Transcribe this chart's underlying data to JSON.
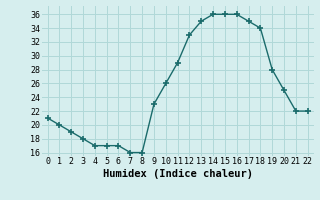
{
  "x": [
    0,
    1,
    2,
    3,
    4,
    5,
    6,
    7,
    8,
    9,
    10,
    11,
    12,
    13,
    14,
    15,
    16,
    17,
    18,
    19,
    20,
    21,
    22
  ],
  "y": [
    21,
    20,
    19,
    18,
    17,
    17,
    17,
    16,
    16,
    23,
    26,
    29,
    33,
    35,
    36,
    36,
    36,
    35,
    34,
    28,
    25,
    22,
    22
  ],
  "line_color": "#1a6b6b",
  "marker": "+",
  "marker_size": 4,
  "marker_lw": 1.2,
  "line_width": 1.0,
  "bg_color": "#d6eeee",
  "grid_color": "#b0d8d8",
  "xlabel": "Humidex (Indice chaleur)",
  "xlabel_fontsize": 7.5,
  "tick_fontsize": 6,
  "xticks": [
    0,
    1,
    2,
    3,
    4,
    5,
    6,
    7,
    8,
    9,
    10,
    11,
    12,
    13,
    14,
    15,
    16,
    17,
    18,
    19,
    20,
    21,
    22
  ],
  "yticks": [
    16,
    18,
    20,
    22,
    24,
    26,
    28,
    30,
    32,
    34,
    36
  ],
  "xlim": [
    -0.5,
    22.5
  ],
  "ylim": [
    15.5,
    37.2
  ]
}
